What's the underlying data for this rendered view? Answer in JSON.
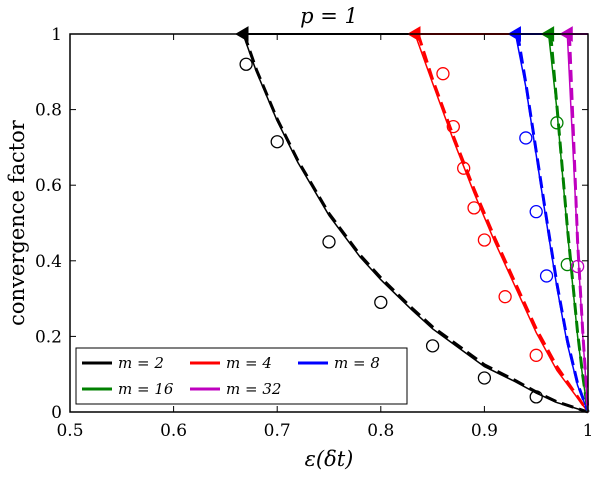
{
  "chart_data": {
    "type": "line",
    "title": "p = 1",
    "xlabel": "ε(δt)",
    "ylabel": "convergence factor",
    "xlim": [
      0.5,
      1
    ],
    "ylim": [
      0,
      1
    ],
    "xticks": [
      "0.5",
      "0.6",
      "0.7",
      "0.8",
      "0.9",
      "1"
    ],
    "yticks": [
      "0",
      "0.2",
      "0.4",
      "0.6",
      "0.8",
      "1"
    ],
    "grid": false,
    "legend_position": "bottom-left",
    "series": [
      {
        "name": "m = 2",
        "color": "#000000",
        "start_x": 0.667,
        "solid": [
          [
            0.667,
            1.0
          ],
          [
            0.68,
            0.9
          ],
          [
            0.7,
            0.77
          ],
          [
            0.72,
            0.66
          ],
          [
            0.75,
            0.52
          ],
          [
            0.78,
            0.41
          ],
          [
            0.8,
            0.35
          ],
          [
            0.83,
            0.27
          ],
          [
            0.85,
            0.22
          ],
          [
            0.88,
            0.16
          ],
          [
            0.9,
            0.12
          ],
          [
            0.93,
            0.08
          ],
          [
            0.95,
            0.05
          ],
          [
            0.97,
            0.025
          ],
          [
            1.0,
            0.0
          ]
        ],
        "dashed": [
          [
            0.668,
            1.0
          ],
          [
            0.68,
            0.905
          ],
          [
            0.7,
            0.775
          ],
          [
            0.72,
            0.665
          ],
          [
            0.75,
            0.525
          ],
          [
            0.78,
            0.415
          ],
          [
            0.8,
            0.355
          ],
          [
            0.83,
            0.275
          ],
          [
            0.85,
            0.225
          ],
          [
            0.88,
            0.165
          ],
          [
            0.9,
            0.125
          ],
          [
            0.93,
            0.083
          ],
          [
            0.95,
            0.053
          ],
          [
            0.97,
            0.027
          ],
          [
            1.0,
            0.0
          ]
        ],
        "markers": [
          [
            0.67,
            0.92
          ],
          [
            0.7,
            0.715
          ],
          [
            0.75,
            0.45
          ],
          [
            0.8,
            0.29
          ],
          [
            0.85,
            0.175
          ],
          [
            0.9,
            0.09
          ],
          [
            0.95,
            0.04
          ]
        ]
      },
      {
        "name": "m = 4",
        "color": "#ff0000",
        "start_x": 0.833,
        "solid": [
          [
            0.833,
            1.0
          ],
          [
            0.85,
            0.87
          ],
          [
            0.87,
            0.72
          ],
          [
            0.89,
            0.58
          ],
          [
            0.91,
            0.45
          ],
          [
            0.93,
            0.33
          ],
          [
            0.95,
            0.21
          ],
          [
            0.97,
            0.11
          ],
          [
            1.0,
            0.0
          ]
        ],
        "dashed": [
          [
            0.836,
            1.0
          ],
          [
            0.85,
            0.88
          ],
          [
            0.87,
            0.73
          ],
          [
            0.89,
            0.59
          ],
          [
            0.91,
            0.46
          ],
          [
            0.93,
            0.34
          ],
          [
            0.95,
            0.22
          ],
          [
            0.97,
            0.12
          ],
          [
            1.0,
            0.0
          ]
        ],
        "markers": [
          [
            0.86,
            0.895
          ],
          [
            0.87,
            0.755
          ],
          [
            0.88,
            0.645
          ],
          [
            0.89,
            0.54
          ],
          [
            0.9,
            0.455
          ],
          [
            0.92,
            0.305
          ],
          [
            0.95,
            0.15
          ]
        ]
      },
      {
        "name": "m = 8",
        "color": "#0000ff",
        "start_x": 0.93,
        "solid": [
          [
            0.93,
            1.0
          ],
          [
            0.94,
            0.86
          ],
          [
            0.95,
            0.68
          ],
          [
            0.96,
            0.5
          ],
          [
            0.97,
            0.33
          ],
          [
            0.98,
            0.18
          ],
          [
            0.99,
            0.07
          ],
          [
            1.0,
            0.0
          ]
        ],
        "dashed": [
          [
            0.932,
            1.0
          ],
          [
            0.94,
            0.87
          ],
          [
            0.95,
            0.69
          ],
          [
            0.96,
            0.51
          ],
          [
            0.97,
            0.34
          ],
          [
            0.98,
            0.19
          ],
          [
            0.99,
            0.075
          ],
          [
            1.0,
            0.0
          ]
        ],
        "markers": [
          [
            0.94,
            0.725
          ],
          [
            0.95,
            0.53
          ],
          [
            0.96,
            0.36
          ]
        ]
      },
      {
        "name": "m = 16",
        "color": "#008000",
        "start_x": 0.962,
        "solid": [
          [
            0.962,
            1.0
          ],
          [
            0.97,
            0.8
          ],
          [
            0.975,
            0.64
          ],
          [
            0.98,
            0.48
          ],
          [
            0.985,
            0.34
          ],
          [
            0.99,
            0.2
          ],
          [
            0.995,
            0.09
          ],
          [
            1.0,
            0.0
          ]
        ],
        "dashed": [
          [
            0.964,
            1.0
          ],
          [
            0.97,
            0.81
          ],
          [
            0.975,
            0.65
          ],
          [
            0.98,
            0.49
          ],
          [
            0.985,
            0.35
          ],
          [
            0.99,
            0.21
          ],
          [
            0.995,
            0.095
          ],
          [
            1.0,
            0.0
          ]
        ],
        "markers": [
          [
            0.97,
            0.765
          ],
          [
            0.98,
            0.39
          ]
        ]
      },
      {
        "name": "m = 32",
        "color": "#bf00bf",
        "start_x": 0.98,
        "solid": [
          [
            0.98,
            1.0
          ],
          [
            0.985,
            0.72
          ],
          [
            0.99,
            0.44
          ],
          [
            0.995,
            0.2
          ],
          [
            1.0,
            0.0
          ]
        ],
        "dashed": [
          [
            0.982,
            1.0
          ],
          [
            0.986,
            0.73
          ],
          [
            0.99,
            0.45
          ],
          [
            0.995,
            0.21
          ],
          [
            1.0,
            0.0
          ]
        ],
        "markers": [
          [
            0.99,
            0.385
          ]
        ]
      }
    ]
  }
}
